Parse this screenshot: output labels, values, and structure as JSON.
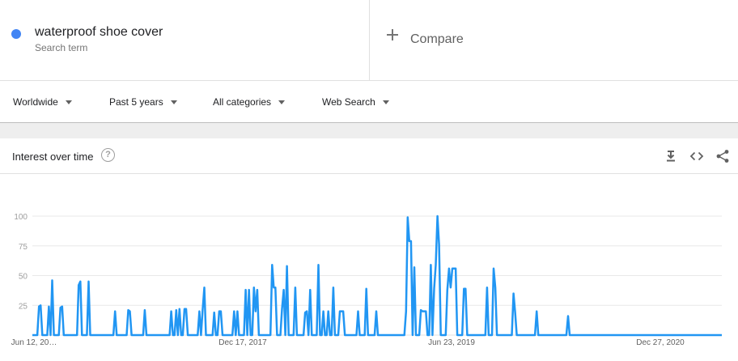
{
  "term": {
    "name": "waterproof shoe cover",
    "subtitle": "Search term",
    "color": "#4285f4"
  },
  "compare": {
    "label": "Compare",
    "icon": "plus-icon"
  },
  "filters": [
    {
      "label": "Worldwide",
      "icon": "caret-down-icon"
    },
    {
      "label": "Past 5 years",
      "icon": "caret-down-icon"
    },
    {
      "label": "All categories",
      "icon": "caret-down-icon"
    },
    {
      "label": "Web Search",
      "icon": "caret-down-icon"
    }
  ],
  "card": {
    "title": "Interest over time",
    "help_icon": "?",
    "actions": [
      "download-icon",
      "embed-icon",
      "share-icon"
    ]
  },
  "chart_data": {
    "type": "line",
    "title": "",
    "xlabel": "",
    "ylabel": "",
    "ylim": [
      0,
      100
    ],
    "yticks": [
      100,
      75,
      50,
      25
    ],
    "grid": true,
    "line_color": "#2196f3",
    "x_tick_labels": [
      "Jun 12, 20…",
      "Dec 17, 2017",
      "Jun 23, 2019",
      "Dec 27, 2020"
    ],
    "series": [
      {
        "values": [
          0,
          0,
          0,
          0,
          24,
          25,
          0,
          0,
          0,
          0,
          24,
          0,
          46,
          0,
          0,
          0,
          0,
          23,
          24,
          0,
          0,
          0,
          0,
          0,
          0,
          0,
          0,
          0,
          42,
          45,
          0,
          0,
          0,
          0,
          45,
          0,
          0,
          0,
          0,
          0,
          0,
          0,
          0,
          0,
          0,
          0,
          0,
          0,
          0,
          0,
          20,
          0,
          0,
          0,
          0,
          0,
          0,
          0,
          21,
          20,
          0,
          0,
          0,
          0,
          0,
          0,
          0,
          0,
          21,
          0,
          0,
          0,
          0,
          0,
          0,
          0,
          0,
          0,
          0,
          0,
          0,
          0,
          0,
          0,
          20,
          0,
          0,
          21,
          0,
          22,
          0,
          0,
          22,
          22,
          0,
          0,
          0,
          0,
          0,
          0,
          0,
          20,
          0,
          21,
          40,
          0,
          0,
          0,
          0,
          0,
          19,
          0,
          0,
          20,
          20,
          0,
          0,
          0,
          0,
          0,
          0,
          0,
          20,
          0,
          20,
          0,
          0,
          0,
          0,
          38,
          0,
          38,
          0,
          0,
          40,
          20,
          38,
          0,
          0,
          0,
          0,
          0,
          0,
          0,
          0,
          59,
          40,
          40,
          0,
          0,
          0,
          22,
          38,
          0,
          58,
          0,
          0,
          0,
          0,
          40,
          0,
          0,
          0,
          0,
          0,
          19,
          20,
          0,
          38,
          0,
          0,
          0,
          0,
          59,
          0,
          0,
          20,
          0,
          0,
          20,
          0,
          0,
          40,
          0,
          0,
          0,
          20,
          20,
          20,
          0,
          0,
          0,
          0,
          0,
          0,
          0,
          0,
          20,
          0,
          0,
          0,
          0,
          39,
          0,
          0,
          0,
          0,
          0,
          20,
          0,
          0,
          0,
          0,
          0,
          0,
          0,
          0,
          0,
          0,
          0,
          0,
          0,
          0,
          0,
          0,
          0,
          20,
          99,
          79,
          79,
          0,
          57,
          0,
          0,
          0,
          21,
          20,
          20,
          20,
          0,
          0,
          59,
          0,
          39,
          59,
          100,
          76,
          0,
          0,
          0,
          0,
          38,
          56,
          40,
          56,
          56,
          56,
          0,
          0,
          0,
          0,
          39,
          39,
          0,
          0,
          0,
          0,
          0,
          0,
          0,
          0,
          0,
          0,
          0,
          0,
          40,
          0,
          0,
          0,
          56,
          40,
          0,
          0,
          0,
          0,
          0,
          0,
          0,
          0,
          0,
          0,
          35,
          19,
          0,
          0,
          0,
          0,
          0,
          0,
          0,
          0,
          0,
          0,
          0,
          0,
          20,
          0,
          0,
          0,
          0,
          0,
          0,
          0,
          0,
          0,
          0,
          0,
          0,
          0,
          0,
          0,
          0,
          0,
          0,
          16,
          0,
          0,
          0,
          0,
          0,
          0,
          0,
          0,
          0,
          0,
          0,
          0,
          0,
          0,
          0,
          0,
          0,
          0,
          0,
          0,
          0,
          0,
          0,
          0,
          0,
          0,
          0,
          0,
          0,
          0,
          0,
          0,
          0,
          0,
          0,
          0,
          0,
          0,
          0,
          0,
          0,
          0,
          0,
          0,
          0,
          0,
          0,
          0,
          0,
          0,
          0,
          0,
          0,
          0,
          0,
          0,
          0,
          0,
          0,
          0,
          0,
          0,
          0,
          0,
          0,
          0,
          0,
          0,
          0,
          0,
          0,
          0,
          0,
          0,
          0,
          0,
          0,
          0,
          0,
          0,
          0,
          0,
          0,
          0,
          0,
          0,
          0,
          0,
          0,
          0,
          0,
          0,
          0
        ]
      }
    ]
  }
}
